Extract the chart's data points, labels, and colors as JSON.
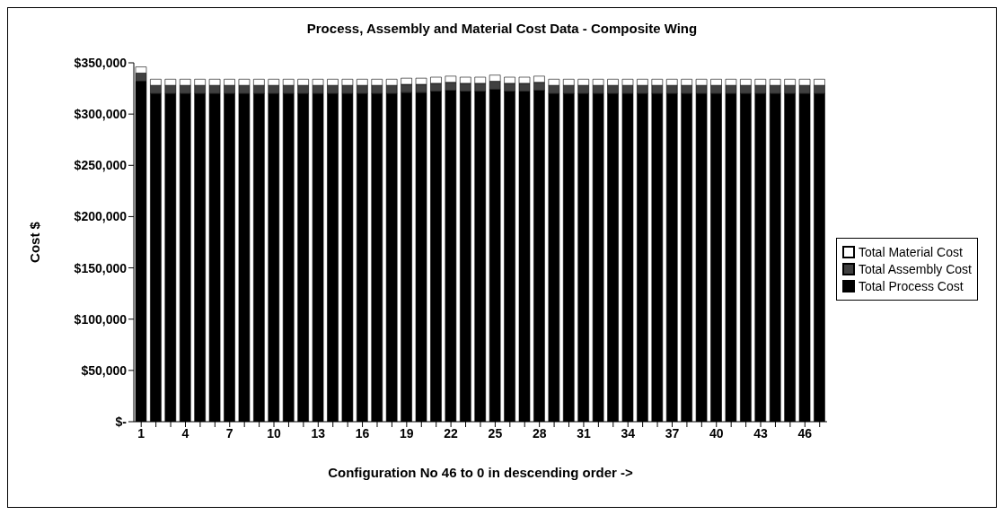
{
  "chart_data": {
    "type": "bar",
    "title": "Process, Assembly and Material Cost Data - Composite Wing",
    "xlabel": "Configuration No 46 to 0 in descending order ->",
    "ylabel": "Cost $",
    "categories": [
      "1",
      null,
      null,
      "4",
      null,
      null,
      "7",
      null,
      null,
      "10",
      null,
      null,
      "13",
      null,
      null,
      "16",
      null,
      null,
      "19",
      null,
      null,
      "22",
      null,
      null,
      "25",
      null,
      null,
      "28",
      null,
      null,
      "31",
      null,
      null,
      "34",
      null,
      null,
      "37",
      null,
      null,
      "40",
      null,
      null,
      "43",
      null,
      null,
      "46",
      null
    ],
    "stacked": true,
    "series": [
      {
        "name": "Total Process Cost",
        "color": "#000000",
        "values": [
          332000,
          320000,
          320000,
          320000,
          320000,
          320000,
          320000,
          320000,
          320000,
          320000,
          320000,
          320000,
          320000,
          320000,
          320000,
          320000,
          320000,
          320000,
          321000,
          321000,
          322000,
          323000,
          322000,
          322000,
          324000,
          322000,
          322000,
          323000,
          320000,
          320000,
          320000,
          320000,
          320000,
          320000,
          320000,
          320000,
          320000,
          320000,
          320000,
          320000,
          320000,
          320000,
          320000,
          320000,
          320000,
          320000,
          320000
        ]
      },
      {
        "name": "Total Assembly Cost",
        "color": "#404040",
        "values": [
          8000,
          8000,
          8000,
          8000,
          8000,
          8000,
          8000,
          8000,
          8000,
          8000,
          8000,
          8000,
          8000,
          8000,
          8000,
          8000,
          8000,
          8000,
          8000,
          8000,
          8000,
          8000,
          8000,
          8000,
          8000,
          8000,
          8000,
          8000,
          8000,
          8000,
          8000,
          8000,
          8000,
          8000,
          8000,
          8000,
          8000,
          8000,
          8000,
          8000,
          8000,
          8000,
          8000,
          8000,
          8000,
          8000,
          8000
        ]
      },
      {
        "name": "Total Material Cost",
        "color": "#ffffff",
        "values": [
          6000,
          6000,
          6000,
          6000,
          6000,
          6000,
          6000,
          6000,
          6000,
          6000,
          6000,
          6000,
          6000,
          6000,
          6000,
          6000,
          6000,
          6000,
          6000,
          6000,
          6000,
          6000,
          6000,
          6000,
          6000,
          6000,
          6000,
          6000,
          6000,
          6000,
          6000,
          6000,
          6000,
          6000,
          6000,
          6000,
          6000,
          6000,
          6000,
          6000,
          6000,
          6000,
          6000,
          6000,
          6000,
          6000,
          6000
        ]
      }
    ],
    "ylim": [
      0,
      350000
    ],
    "yticks": [
      {
        "value": 0,
        "label": "$-"
      },
      {
        "value": 50000,
        "label": "$50,000"
      },
      {
        "value": 100000,
        "label": "$100,000"
      },
      {
        "value": 150000,
        "label": "$150,000"
      },
      {
        "value": 200000,
        "label": "$200,000"
      },
      {
        "value": 250000,
        "label": "$250,000"
      },
      {
        "value": 300000,
        "label": "$300,000"
      },
      {
        "value": 350000,
        "label": "$350,000"
      }
    ],
    "grid": false,
    "legend": "right"
  }
}
